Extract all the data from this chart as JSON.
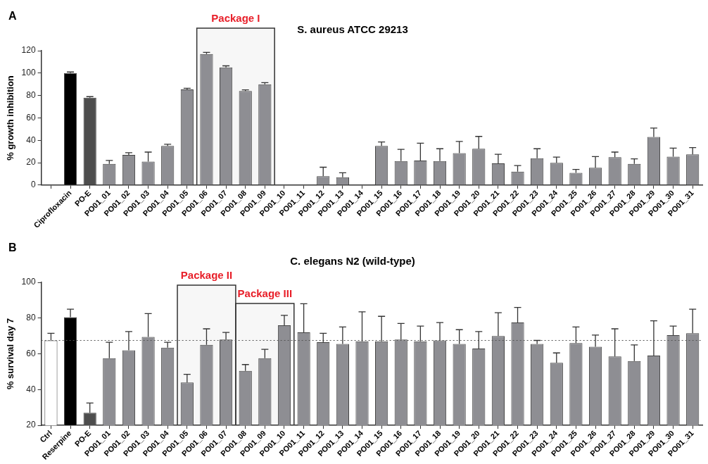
{
  "chart_data": [
    {
      "type": "bar",
      "title": "S. aureus ATCC 29213",
      "ylabel": "% growth inhibition",
      "annotations": [
        "A"
      ],
      "categories": [
        null,
        "Ciprofloxacin",
        "PO-E",
        "PO01_01",
        "PO01_02",
        "PO01_03",
        "PO01_04",
        "PO01_05",
        "PO01_06",
        "PO01_07",
        "PO01_08",
        "PO01_09",
        "PO01_10",
        "PO01_11",
        "PO01_12",
        "PO01_13",
        "PO01_14",
        "PO01_15",
        "PO01_16",
        "PO01_17",
        "PO01_18",
        "PO01_19",
        "PO01_20",
        "PO01_21",
        "PO01_22",
        "PO01_23",
        "PO01_24",
        "PO01_25",
        "PO01_26",
        "PO01_27",
        "PO01_28",
        "PO01_29",
        "PO01_30",
        "PO01_31"
      ],
      "values": [
        null,
        100,
        78,
        19,
        27,
        21,
        35,
        85.5,
        117,
        105,
        84,
        90,
        0,
        0,
        8,
        7,
        0,
        35,
        21.5,
        22,
        21.5,
        28.5,
        32.5,
        19.5,
        12,
        24,
        20,
        11,
        15.5,
        25,
        19,
        43,
        25.5,
        27.5
      ],
      "errors": [
        null,
        [
          100,
          101
        ],
        [
          78,
          79
        ],
        [
          19,
          22
        ],
        [
          27,
          29
        ],
        [
          21,
          29.5
        ],
        [
          35,
          36.5
        ],
        [
          85.5,
          86.5
        ],
        [
          117,
          118.5
        ],
        [
          105,
          106.5
        ],
        [
          84,
          85
        ],
        [
          90,
          91.5
        ],
        null,
        null,
        [
          8,
          16
        ],
        [
          7,
          11
        ],
        null,
        [
          35,
          38.5
        ],
        [
          21.5,
          32
        ],
        [
          22,
          37.5
        ],
        [
          21.5,
          32.5
        ],
        [
          28.5,
          39
        ],
        [
          32.5,
          43.5
        ],
        [
          19.5,
          27.5
        ],
        [
          12,
          17.5
        ],
        [
          24,
          32.5
        ],
        [
          20,
          25
        ],
        [
          11,
          14
        ],
        [
          15.5,
          25.5
        ],
        [
          25,
          29.5
        ],
        [
          19,
          23.5
        ],
        [
          43,
          51
        ],
        [
          25.5,
          33
        ],
        [
          27.5,
          33.5
        ]
      ],
      "colors": [
        "#8e8e93",
        "#000000",
        "#4d4d4d",
        "#8e8e93",
        "#8e8e93",
        "#8e8e93",
        "#8e8e93",
        "#8e8e93",
        "#8e8e93",
        "#8e8e93",
        "#8e8e93",
        "#8e8e93",
        "#8e8e93",
        "#8e8e93",
        "#8e8e93",
        "#8e8e93",
        "#8e8e93",
        "#8e8e93",
        "#8e8e93",
        "#8e8e93",
        "#8e8e93",
        "#8e8e93",
        "#8e8e93",
        "#8e8e93",
        "#8e8e93",
        "#8e8e93",
        "#8e8e93",
        "#8e8e93",
        "#8e8e93",
        "#8e8e93",
        "#8e8e93",
        "#8e8e93",
        "#8e8e93",
        "#8e8e93"
      ],
      "bands": [
        {
          "axis": "x",
          "from": "PO01_06",
          "to": "PO01_09",
          "label": "Package I",
          "color": "#333333"
        }
      ],
      "ylim": [
        0,
        120
      ],
      "yticks": [
        0,
        20,
        40,
        60,
        80,
        100,
        120
      ],
      "grid": false,
      "legend": false
    },
    {
      "type": "bar",
      "title": "C. elegans N2 (wild-type)",
      "ylabel": "% survival day 7",
      "annotations": [
        "B"
      ],
      "categories": [
        "Ctrl",
        "Reserpine",
        "PO-E",
        "PO01_01",
        "PO01_02",
        "PO01_03",
        "PO01_04",
        "PO01_05",
        "PO01_06",
        "PO01_07",
        "PO01_08",
        "PO01_09",
        "PO01_10",
        "PO01_11",
        "PO01_12",
        "PO01_13",
        "PO01_14",
        "PO01_15",
        "PO01_16",
        "PO01_17",
        "PO01_18",
        "PO01_19",
        "PO01_20",
        "PO01_21",
        "PO01_22",
        "PO01_23",
        "PO01_24",
        "PO01_25",
        "PO01_26",
        "PO01_27",
        "PO01_28",
        "PO01_29",
        "PO01_30",
        "PO01_31"
      ],
      "values": [
        67.5,
        80.5,
        27,
        57.5,
        62,
        69.5,
        63.5,
        44,
        65,
        68,
        50.5,
        57.5,
        76,
        72,
        66.5,
        65.5,
        67,
        67,
        68,
        67,
        67.5,
        65.5,
        63,
        70,
        77.5,
        65.5,
        55,
        66,
        64,
        58.5,
        56,
        59,
        70.5,
        71.5
      ],
      "errors": [
        [
          67.5,
          71.5
        ],
        [
          80.5,
          85
        ],
        [
          27,
          32.5
        ],
        [
          57.5,
          66.5
        ],
        [
          62,
          72.5
        ],
        [
          69.5,
          82.5
        ],
        [
          63.5,
          66.5
        ],
        [
          44,
          48.5
        ],
        [
          65,
          74
        ],
        [
          68,
          72
        ],
        [
          50.5,
          54
        ],
        [
          57.5,
          62.5
        ],
        [
          76,
          81.5
        ],
        [
          72,
          88
        ],
        [
          66.5,
          71.5
        ],
        [
          65.5,
          75
        ],
        [
          67,
          83.5
        ],
        [
          67,
          81
        ],
        [
          68,
          77
        ],
        [
          67,
          75.5
        ],
        [
          67.5,
          77.5
        ],
        [
          65.5,
          73.5
        ],
        [
          63,
          72.5
        ],
        [
          70,
          83
        ],
        [
          77.5,
          86
        ],
        [
          65.5,
          67.5
        ],
        [
          55,
          60.5
        ],
        [
          66,
          75
        ],
        [
          64,
          70.5
        ],
        [
          58.5,
          74
        ],
        [
          56,
          65
        ],
        [
          59,
          78.5
        ],
        [
          70.5,
          75.5
        ],
        [
          71.5,
          85
        ]
      ],
      "colors": [
        "#ffffff",
        "#000000",
        "#4d4d4d",
        "#8e8e93",
        "#8e8e93",
        "#8e8e93",
        "#8e8e93",
        "#8e8e93",
        "#8e8e93",
        "#8e8e93",
        "#8e8e93",
        "#8e8e93",
        "#8e8e93",
        "#8e8e93",
        "#8e8e93",
        "#8e8e93",
        "#8e8e93",
        "#8e8e93",
        "#8e8e93",
        "#8e8e93",
        "#8e8e93",
        "#8e8e93",
        "#8e8e93",
        "#8e8e93",
        "#8e8e93",
        "#8e8e93",
        "#8e8e93",
        "#8e8e93",
        "#8e8e93",
        "#8e8e93",
        "#8e8e93",
        "#8e8e93",
        "#8e8e93",
        "#8e8e93"
      ],
      "ref_lines": [
        {
          "axis": "y",
          "value": 67.5,
          "color": "#555555",
          "line_style": "dotted"
        }
      ],
      "bands": [
        {
          "axis": "x",
          "from": "PO01_05",
          "to": "PO01_07",
          "label": "Package II",
          "color": "#333333"
        },
        {
          "axis": "x",
          "from": "PO01_08",
          "to": "PO01_10",
          "label": "Package III",
          "color": "#333333"
        }
      ],
      "ylim": [
        20,
        100
      ],
      "yticks": [
        20,
        40,
        60,
        80,
        100
      ],
      "grid": false,
      "legend": false
    }
  ]
}
